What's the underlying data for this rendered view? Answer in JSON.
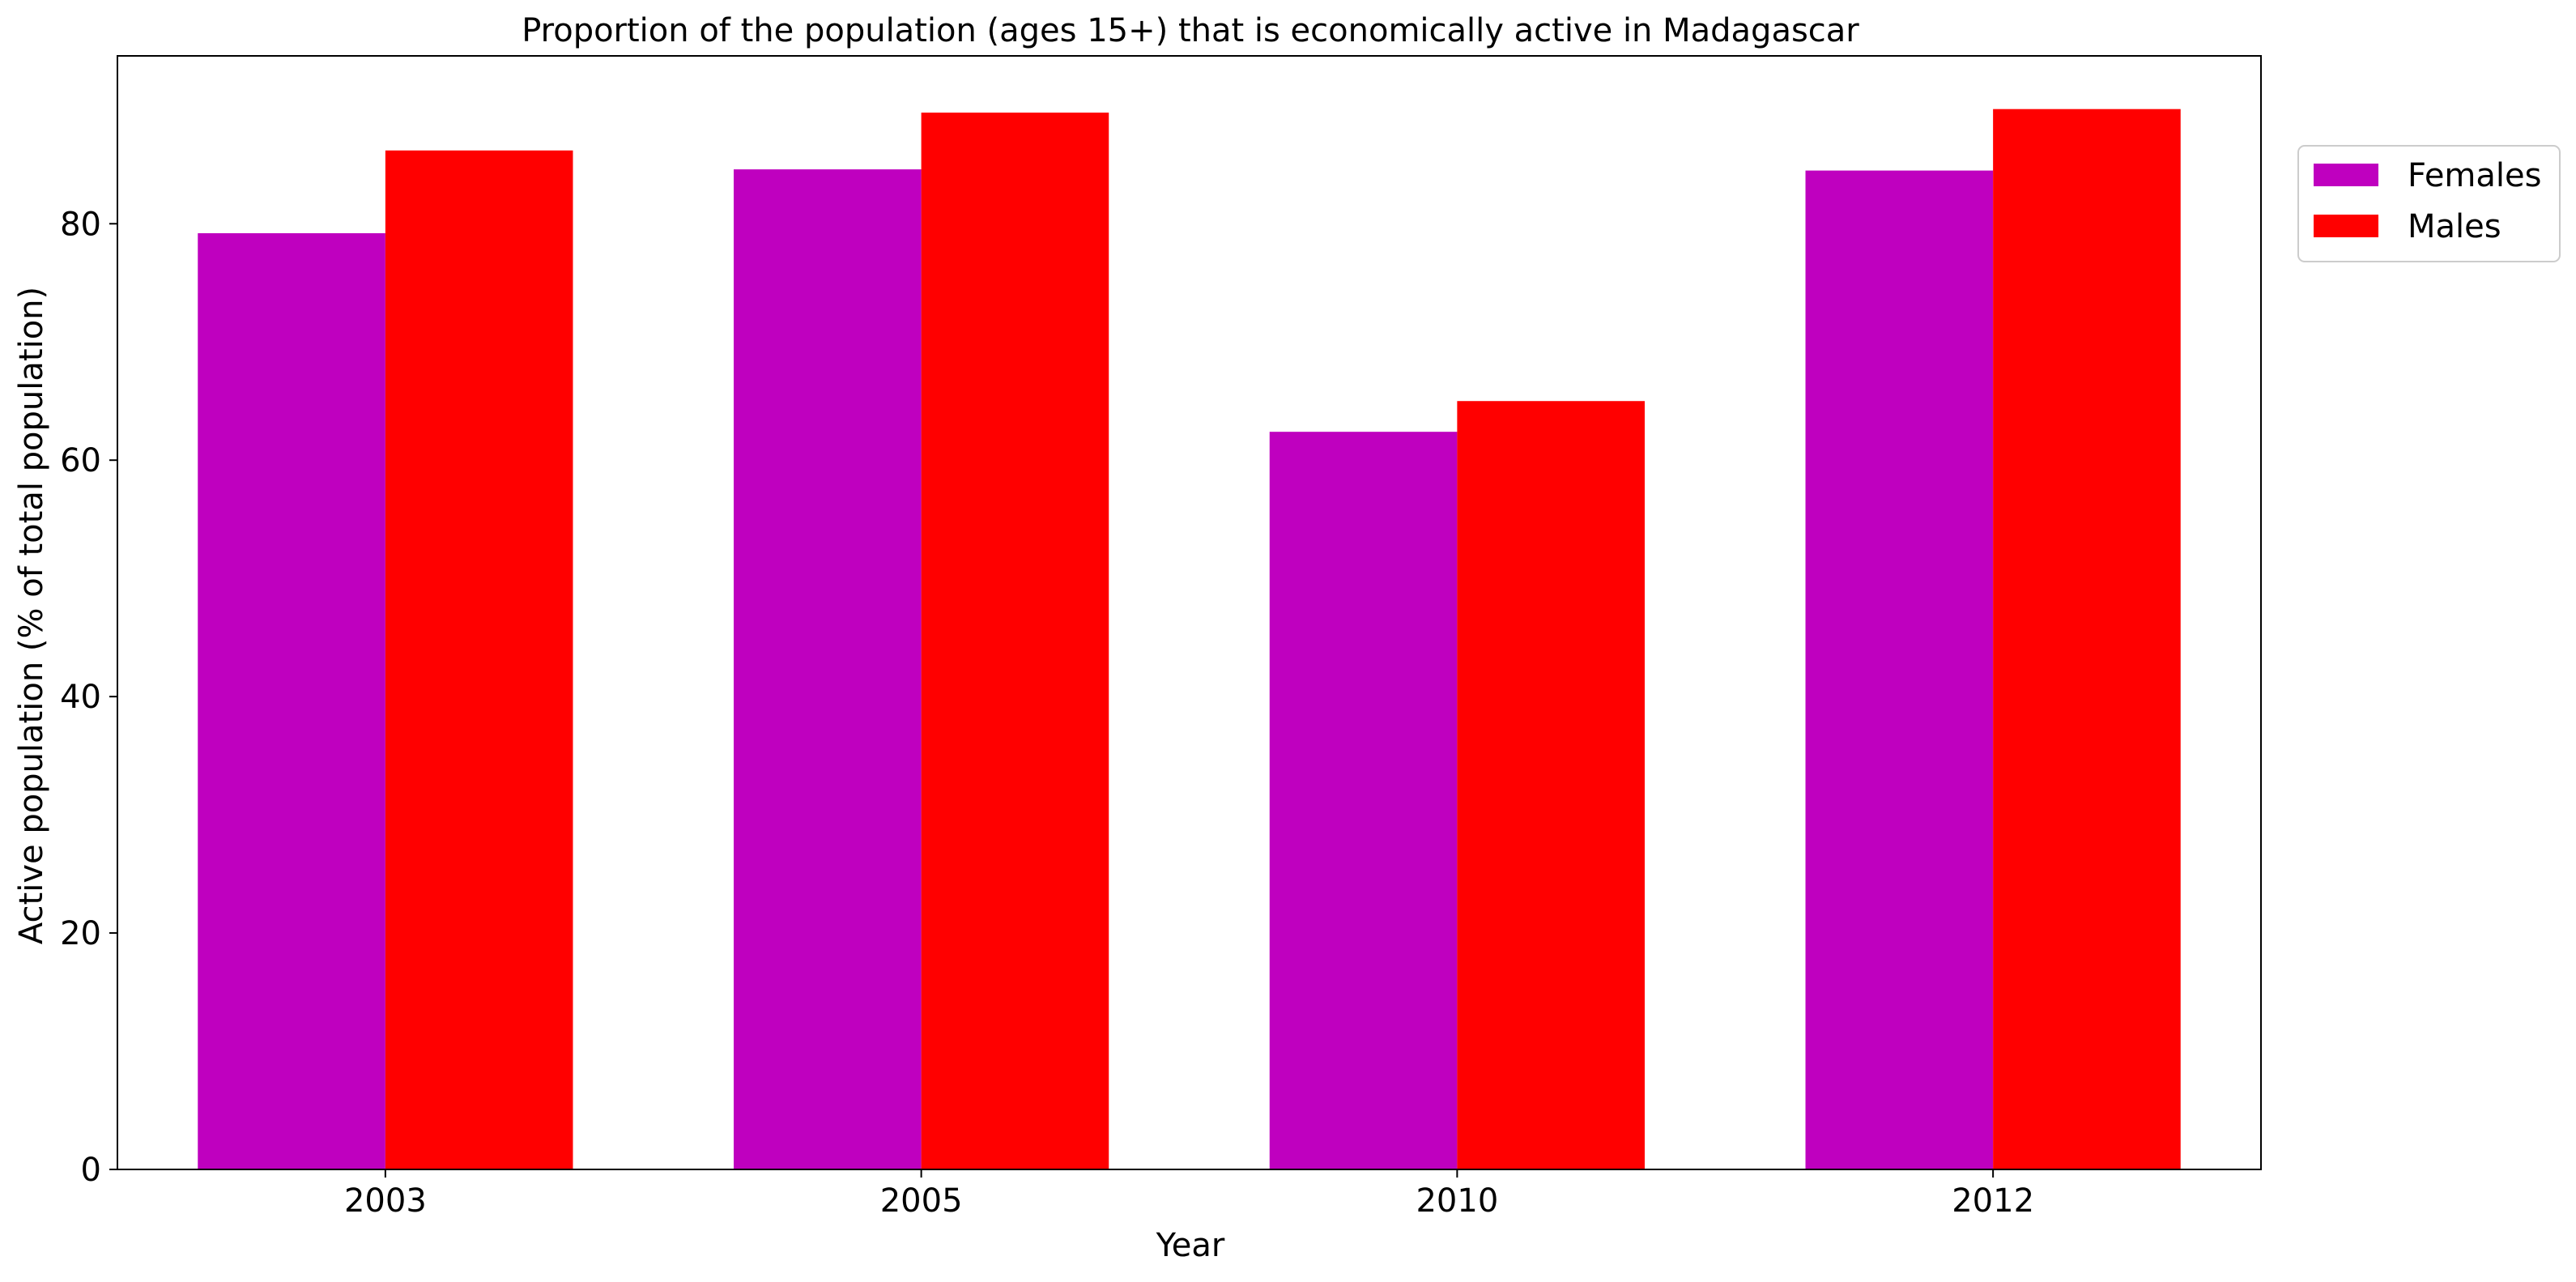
{
  "chart_data": {
    "type": "bar",
    "title": "Proportion of the population (ages 15+) that is economically active in Madagascar",
    "xlabel": "Year",
    "ylabel": "Active population (% of total population)",
    "categories": [
      "2003",
      "2005",
      "2010",
      "2012"
    ],
    "series": [
      {
        "name": "Females",
        "color": "#bf00bf",
        "values": [
          79.2,
          84.6,
          62.4,
          84.5
        ]
      },
      {
        "name": "Males",
        "color": "#ff0000",
        "values": [
          86.2,
          89.4,
          65.0,
          89.7
        ]
      }
    ],
    "ylim": [
      0,
      94.2
    ],
    "yticks": [
      0,
      20,
      40,
      60,
      80
    ],
    "grid": false,
    "legend_position": "outside-top-right"
  }
}
